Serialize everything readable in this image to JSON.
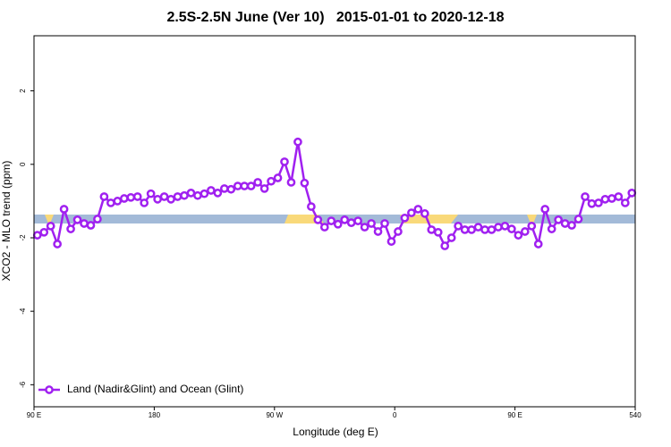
{
  "chart_data": {
    "type": "line",
    "title": "2.5S-2.5N June (Ver 10)   2015-01-01 to 2020-12-18",
    "x_label": "Longitude (deg E)",
    "y_label": "XCO2 - MLO trend (ppm)",
    "xlim": [
      90,
      540
    ],
    "xticks": [
      {
        "value": 90,
        "label": "90 E"
      },
      180,
      {
        "value": 270,
        "label": "90 W"
      },
      {
        "value": 360,
        "label": "0"
      },
      {
        "value": 450,
        "label": "90 E"
      },
      540
    ],
    "ylim": [
      -6.6,
      3.5
    ],
    "yticks": [
      -6,
      -4,
      -2,
      0,
      2
    ],
    "x": [
      92.5,
      97.5,
      102.5,
      107.5,
      112.5,
      117.5,
      122.5,
      127.5,
      132.5,
      137.5,
      142.5,
      147.5,
      152.5,
      157.5,
      162.5,
      167.5,
      172.5,
      177.5,
      182.5,
      187.5,
      192.5,
      197.5,
      202.5,
      207.5,
      212.5,
      217.5,
      222.5,
      227.5,
      232.5,
      237.5,
      242.5,
      247.5,
      252.5,
      257.5,
      262.5,
      267.5,
      272.5,
      277.5,
      282.5,
      287.5,
      292.5,
      297.5,
      302.5,
      307.5,
      312.5,
      317.5,
      322.5,
      327.5,
      332.5,
      337.5,
      342.5,
      347.5,
      352.5,
      357.5,
      362.5,
      367.5,
      372.5,
      377.5,
      382.5,
      387.5,
      392.5,
      397.5,
      402.5,
      407.5,
      412.5,
      417.5,
      422.5,
      427.5,
      432.5,
      437.5,
      442.5,
      447.5,
      452.5,
      457.5,
      462.5,
      467.5,
      472.5,
      477.5,
      482.5,
      487.5,
      492.5,
      497.5,
      502.5,
      507.5,
      512.5,
      517.5,
      522.5,
      527.5,
      532.5,
      537.5
    ],
    "series": [
      {
        "name": "Land (Nadir&Glint) and Ocean (Glint)",
        "color": "#a020f0",
        "values": [
          -1.93,
          -1.85,
          -1.68,
          -2.17,
          -1.22,
          -1.76,
          -1.51,
          -1.61,
          -1.66,
          -1.49,
          -0.88,
          -1.05,
          -1.0,
          -0.93,
          -0.9,
          -0.88,
          -1.05,
          -0.8,
          -0.95,
          -0.88,
          -0.95,
          -0.88,
          -0.85,
          -0.78,
          -0.85,
          -0.8,
          -0.71,
          -0.78,
          -0.66,
          -0.68,
          -0.59,
          -0.59,
          -0.59,
          -0.49,
          -0.66,
          -0.46,
          -0.37,
          0.07,
          -0.49,
          0.61,
          -0.51,
          -1.15,
          -1.51,
          -1.71,
          -1.54,
          -1.63,
          -1.51,
          -1.59,
          -1.54,
          -1.71,
          -1.61,
          -1.83,
          -1.61,
          -2.1,
          -1.83,
          -1.46,
          -1.32,
          -1.22,
          -1.34,
          -1.78,
          -1.85,
          -2.22,
          -2.0,
          -1.68,
          -1.78,
          -1.78,
          -1.71,
          -1.78,
          -1.78,
          -1.71,
          -1.68,
          -1.76,
          -1.93,
          -1.83,
          -1.68,
          -2.17,
          -1.22,
          -1.76,
          -1.51,
          -1.61,
          -1.66,
          -1.49,
          -0.88,
          -1.07,
          -1.05,
          -0.95,
          -0.93,
          -0.88,
          -1.05,
          -0.78
        ]
      }
    ],
    "legend": "bottom-left"
  }
}
